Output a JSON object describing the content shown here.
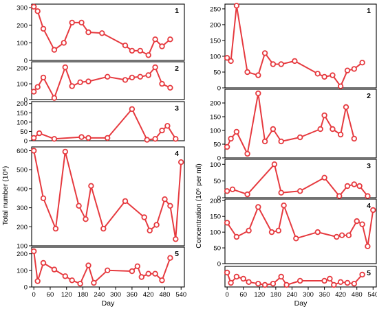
{
  "colors": {
    "series": "#e63a3f",
    "axis": "#000000"
  },
  "chart_data": [
    {
      "type": "line",
      "group": "left",
      "panel_label": "1",
      "xlabel": "",
      "ylabel": "",
      "xlim": [
        -8,
        552
      ],
      "ylim": [
        0,
        320
      ],
      "yticks": [
        0,
        100,
        200,
        300
      ],
      "series": [
        {
          "x": [
            0,
            14,
            35,
            75,
            110,
            140,
            175,
            200,
            250,
            335,
            360,
            390,
            420,
            445,
            470,
            500
          ],
          "y": [
            305,
            280,
            180,
            60,
            100,
            215,
            215,
            160,
            155,
            85,
            55,
            55,
            30,
            120,
            80,
            120
          ]
        }
      ]
    },
    {
      "type": "line",
      "group": "left",
      "panel_label": "2",
      "xlabel": "",
      "ylabel": "",
      "xlim": [
        -8,
        552
      ],
      "ylim": [
        0,
        240
      ],
      "yticks": [
        0,
        100,
        200
      ],
      "series": [
        {
          "x": [
            0,
            14,
            35,
            75,
            115,
            140,
            170,
            200,
            270,
            335,
            360,
            390,
            420,
            445,
            470,
            500
          ],
          "y": [
            50,
            80,
            140,
            10,
            205,
            85,
            110,
            115,
            145,
            125,
            140,
            145,
            155,
            205,
            100,
            75
          ]
        }
      ]
    },
    {
      "type": "line",
      "group": "left",
      "panel_label": "3",
      "xlabel": "",
      "ylabel": "",
      "xlim": [
        -8,
        552
      ],
      "ylim": [
        0,
        210
      ],
      "yticks": [
        0,
        50,
        100,
        150,
        200
      ],
      "series": [
        {
          "x": [
            0,
            20,
            75,
            175,
            200,
            270,
            360,
            415,
            445,
            470,
            490,
            520
          ],
          "y": [
            15,
            40,
            10,
            20,
            15,
            15,
            170,
            5,
            10,
            55,
            80,
            10
          ]
        }
      ]
    },
    {
      "type": "line",
      "group": "left",
      "panel_label": "4",
      "xlabel": "",
      "ylabel": "Total number (10⁶)",
      "xlim": [
        -8,
        552
      ],
      "ylim": [
        100,
        620
      ],
      "yticks": [
        100,
        200,
        300,
        400,
        500,
        600
      ],
      "series": [
        {
          "x": [
            0,
            35,
            80,
            115,
            165,
            190,
            210,
            255,
            335,
            405,
            425,
            450,
            480,
            500,
            520,
            540
          ],
          "y": [
            600,
            350,
            190,
            595,
            310,
            240,
            415,
            190,
            335,
            250,
            180,
            210,
            345,
            310,
            135,
            540
          ]
        }
      ]
    },
    {
      "type": "line",
      "group": "left",
      "panel_label": "5",
      "xlabel": "Day",
      "ylabel": "",
      "xlim": [
        -8,
        552
      ],
      "ylim": [
        0,
        240
      ],
      "xticks": [
        0,
        60,
        120,
        180,
        240,
        300,
        360,
        420,
        480,
        540
      ],
      "yticks": [
        0,
        100,
        200
      ],
      "series": [
        {
          "x": [
            0,
            14,
            35,
            75,
            115,
            140,
            170,
            200,
            220,
            270,
            360,
            380,
            395,
            420,
            445,
            470,
            500
          ],
          "y": [
            215,
            35,
            145,
            105,
            65,
            40,
            20,
            130,
            25,
            100,
            95,
            125,
            60,
            80,
            80,
            40,
            175
          ]
        }
      ]
    },
    {
      "type": "line",
      "group": "right",
      "panel_label": "1",
      "xlabel": "",
      "ylabel": "",
      "xlim": [
        -8,
        552
      ],
      "ylim": [
        0,
        265
      ],
      "yticks": [
        0,
        50,
        100,
        150,
        200,
        250
      ],
      "series": [
        {
          "x": [
            0,
            14,
            35,
            75,
            115,
            140,
            170,
            200,
            250,
            335,
            360,
            390,
            420,
            445,
            470,
            500
          ],
          "y": [
            95,
            85,
            260,
            50,
            40,
            110,
            75,
            75,
            85,
            45,
            35,
            40,
            5,
            55,
            60,
            80
          ]
        }
      ]
    },
    {
      "type": "line",
      "group": "right",
      "panel_label": "2",
      "xlabel": "",
      "ylabel": "Concentration (10⁶ per ml)",
      "xlim": [
        -8,
        552
      ],
      "ylim": [
        0,
        250
      ],
      "yticks": [
        0,
        50,
        100,
        150,
        200
      ],
      "series": [
        {
          "x": [
            0,
            14,
            35,
            75,
            115,
            140,
            170,
            200,
            270,
            345,
            360,
            390,
            420,
            440,
            470
          ],
          "y": [
            40,
            70,
            95,
            15,
            235,
            60,
            105,
            60,
            75,
            105,
            155,
            105,
            85,
            185,
            70
          ]
        }
      ]
    },
    {
      "type": "line",
      "group": "right",
      "panel_label": "3",
      "xlabel": "",
      "ylabel": "",
      "xlim": [
        -8,
        552
      ],
      "ylim": [
        0,
        115
      ],
      "yticks": [
        0,
        50,
        100
      ],
      "series": [
        {
          "x": [
            0,
            20,
            75,
            175,
            200,
            270,
            360,
            415,
            445,
            470,
            490,
            520
          ],
          "y": [
            20,
            25,
            10,
            100,
            15,
            20,
            60,
            5,
            35,
            40,
            35,
            5
          ]
        }
      ]
    },
    {
      "type": "line",
      "group": "right",
      "panel_label": "4",
      "xlabel": "",
      "ylabel": "",
      "xlim": [
        -8,
        552
      ],
      "ylim": [
        0,
        205
      ],
      "yticks": [
        0,
        50,
        100,
        150,
        200
      ],
      "series": [
        {
          "x": [
            0,
            35,
            80,
            115,
            165,
            190,
            210,
            255,
            335,
            405,
            425,
            450,
            480,
            500,
            520,
            540
          ],
          "y": [
            130,
            85,
            105,
            180,
            100,
            105,
            185,
            80,
            100,
            85,
            90,
            90,
            135,
            125,
            55,
            170
          ]
        }
      ]
    },
    {
      "type": "line",
      "group": "right",
      "panel_label": "5",
      "xlabel": "Day",
      "ylabel": "",
      "xlim": [
        -8,
        552
      ],
      "ylim": [
        0,
        50
      ],
      "xticks": [
        0,
        60,
        120,
        180,
        240,
        300,
        360,
        420,
        480,
        540
      ],
      "yticks": [],
      "series": [
        {
          "x": [
            0,
            14,
            35,
            60,
            80,
            115,
            140,
            170,
            200,
            220,
            270,
            360,
            380,
            395,
            420,
            445,
            470,
            500
          ],
          "y": [
            35,
            10,
            25,
            20,
            12,
            8,
            5,
            8,
            25,
            5,
            15,
            15,
            20,
            5,
            12,
            10,
            8,
            30
          ]
        }
      ]
    }
  ]
}
